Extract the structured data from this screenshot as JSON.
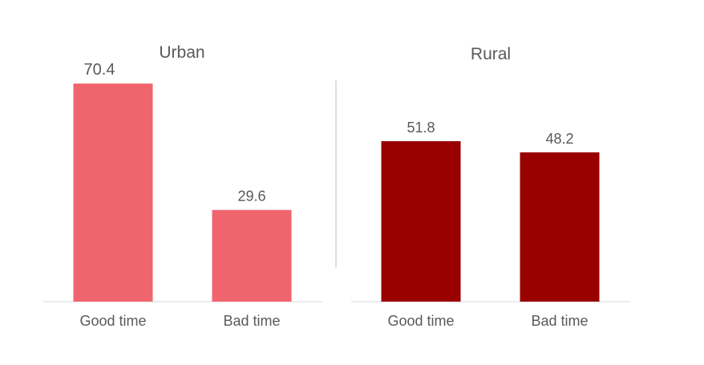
{
  "chart_data": [
    {
      "type": "bar",
      "title": "Urban",
      "categories": [
        "Good time",
        "Bad time"
      ],
      "values": [
        70.4,
        29.6
      ],
      "data_labels": [
        "70.4",
        "29.6"
      ],
      "color": "#F0646E",
      "ylim": [
        0,
        72
      ],
      "grid": false,
      "legend": "none"
    },
    {
      "type": "bar",
      "title": "Rural",
      "categories": [
        "Good time",
        "Bad time"
      ],
      "values": [
        51.8,
        48.2
      ],
      "data_labels": [
        "51.8",
        "48.2"
      ],
      "color": "#990000",
      "ylim": [
        0,
        72
      ],
      "grid": false,
      "legend": "none"
    }
  ]
}
